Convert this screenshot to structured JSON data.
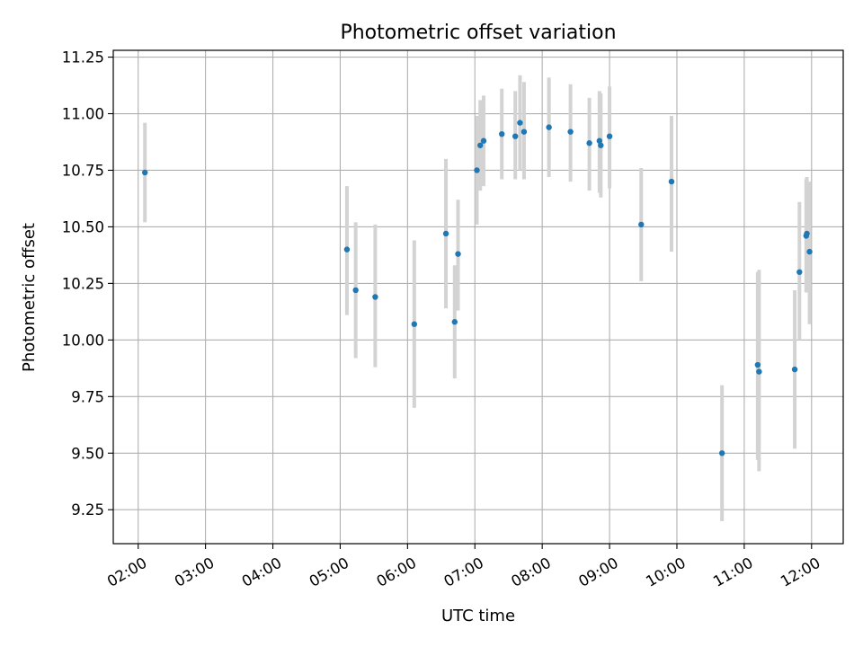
{
  "chart_data": {
    "type": "scatter",
    "title": "Photometric offset variation",
    "xlabel": "UTC time",
    "ylabel": "Photometric offset",
    "x_unit": "hours UTC",
    "xlim": [
      1.63,
      12.47
    ],
    "ylim": [
      9.1,
      11.28
    ],
    "x_ticks": [
      {
        "value": 2,
        "label": "02:00"
      },
      {
        "value": 3,
        "label": "03:00"
      },
      {
        "value": 4,
        "label": "04:00"
      },
      {
        "value": 5,
        "label": "05:00"
      },
      {
        "value": 6,
        "label": "06:00"
      },
      {
        "value": 7,
        "label": "07:00"
      },
      {
        "value": 8,
        "label": "08:00"
      },
      {
        "value": 9,
        "label": "09:00"
      },
      {
        "value": 10,
        "label": "10:00"
      },
      {
        "value": 11,
        "label": "11:00"
      },
      {
        "value": 12,
        "label": "12:00"
      }
    ],
    "y_ticks": [
      {
        "value": 9.25,
        "label": "9.25"
      },
      {
        "value": 9.5,
        "label": "9.50"
      },
      {
        "value": 9.75,
        "label": "9.75"
      },
      {
        "value": 10.0,
        "label": "10.00"
      },
      {
        "value": 10.25,
        "label": "10.25"
      },
      {
        "value": 10.5,
        "label": "10.50"
      },
      {
        "value": 10.75,
        "label": "10.75"
      },
      {
        "value": 11.0,
        "label": "11.00"
      },
      {
        "value": 11.25,
        "label": "11.25"
      }
    ],
    "grid": true,
    "point_color": "#1f77b4",
    "errorbar_color": "#d3d3d3",
    "points": [
      {
        "x": 2.1,
        "y": 10.74,
        "ylo": 10.52,
        "yhi": 10.96
      },
      {
        "x": 5.1,
        "y": 10.4,
        "ylo": 10.11,
        "yhi": 10.68
      },
      {
        "x": 5.23,
        "y": 10.22,
        "ylo": 9.92,
        "yhi": 10.52
      },
      {
        "x": 5.52,
        "y": 10.19,
        "ylo": 9.88,
        "yhi": 10.51
      },
      {
        "x": 6.1,
        "y": 10.07,
        "ylo": 9.7,
        "yhi": 10.44
      },
      {
        "x": 6.57,
        "y": 10.47,
        "ylo": 10.14,
        "yhi": 10.8
      },
      {
        "x": 6.7,
        "y": 10.08,
        "ylo": 9.83,
        "yhi": 10.33
      },
      {
        "x": 6.75,
        "y": 10.38,
        "ylo": 10.13,
        "yhi": 10.62
      },
      {
        "x": 7.03,
        "y": 10.75,
        "ylo": 10.51,
        "yhi": 10.99
      },
      {
        "x": 7.08,
        "y": 10.86,
        "ylo": 10.66,
        "yhi": 11.06
      },
      {
        "x": 7.13,
        "y": 10.88,
        "ylo": 10.68,
        "yhi": 11.08
      },
      {
        "x": 7.4,
        "y": 10.91,
        "ylo": 10.71,
        "yhi": 11.11
      },
      {
        "x": 7.6,
        "y": 10.9,
        "ylo": 10.71,
        "yhi": 11.1
      },
      {
        "x": 7.67,
        "y": 10.96,
        "ylo": 10.75,
        "yhi": 11.17
      },
      {
        "x": 7.73,
        "y": 10.92,
        "ylo": 10.71,
        "yhi": 11.14
      },
      {
        "x": 8.1,
        "y": 10.94,
        "ylo": 10.72,
        "yhi": 11.16
      },
      {
        "x": 8.42,
        "y": 10.92,
        "ylo": 10.7,
        "yhi": 11.13
      },
      {
        "x": 8.7,
        "y": 10.87,
        "ylo": 10.66,
        "yhi": 11.07
      },
      {
        "x": 8.85,
        "y": 10.88,
        "ylo": 10.65,
        "yhi": 11.1
      },
      {
        "x": 8.87,
        "y": 10.86,
        "ylo": 10.63,
        "yhi": 11.09
      },
      {
        "x": 9.0,
        "y": 10.9,
        "ylo": 10.67,
        "yhi": 11.12
      },
      {
        "x": 9.47,
        "y": 10.51,
        "ylo": 10.26,
        "yhi": 10.76
      },
      {
        "x": 9.92,
        "y": 10.7,
        "ylo": 10.39,
        "yhi": 10.99
      },
      {
        "x": 10.67,
        "y": 9.5,
        "ylo": 9.2,
        "yhi": 9.8
      },
      {
        "x": 11.2,
        "y": 9.89,
        "ylo": 9.47,
        "yhi": 10.3
      },
      {
        "x": 11.22,
        "y": 9.86,
        "ylo": 9.42,
        "yhi": 10.31
      },
      {
        "x": 11.75,
        "y": 9.87,
        "ylo": 9.52,
        "yhi": 10.22
      },
      {
        "x": 11.82,
        "y": 10.3,
        "ylo": 10.0,
        "yhi": 10.61
      },
      {
        "x": 11.92,
        "y": 10.46,
        "ylo": 10.21,
        "yhi": 10.71
      },
      {
        "x": 11.93,
        "y": 10.47,
        "ylo": 10.22,
        "yhi": 10.72
      },
      {
        "x": 11.97,
        "y": 10.39,
        "ylo": 10.07,
        "yhi": 10.7
      }
    ]
  }
}
